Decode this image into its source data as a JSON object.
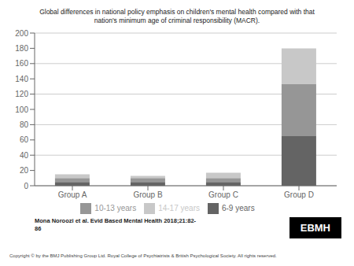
{
  "chart_data": {
    "type": "bar",
    "title": "Global differences in national policy emphasis on children's mental health compared with that\nnation's minimum age of criminal responsibility (MACR).",
    "categories": [
      "Group A",
      "Group B",
      "Group C",
      "Group D"
    ],
    "series": [
      {
        "name": "6-9 years",
        "color": "#646464",
        "values": [
          5,
          5,
          5,
          65
        ]
      },
      {
        "name": "10-13 years",
        "color": "#969696",
        "values": [
          5,
          5,
          5,
          68
        ]
      },
      {
        "name": "14-17 years",
        "color": "#c8c8c8",
        "values": [
          5,
          3,
          7,
          47
        ]
      }
    ],
    "stacked": true,
    "ylim": [
      0,
      200
    ],
    "yticks": [
      0,
      20,
      40,
      60,
      80,
      100,
      120,
      140,
      160,
      180,
      200
    ],
    "grid": true,
    "legend": "bottom",
    "annotations": [
      "Mona Noroozi et al. Evid Based Mental Health 2018;21:82-\n86",
      "Copyright © by the BMJ Publishing Group Ltd. Royal College of Psychiatrists & British Psychological Society. All rights reserved.",
      "EBMH"
    ]
  }
}
